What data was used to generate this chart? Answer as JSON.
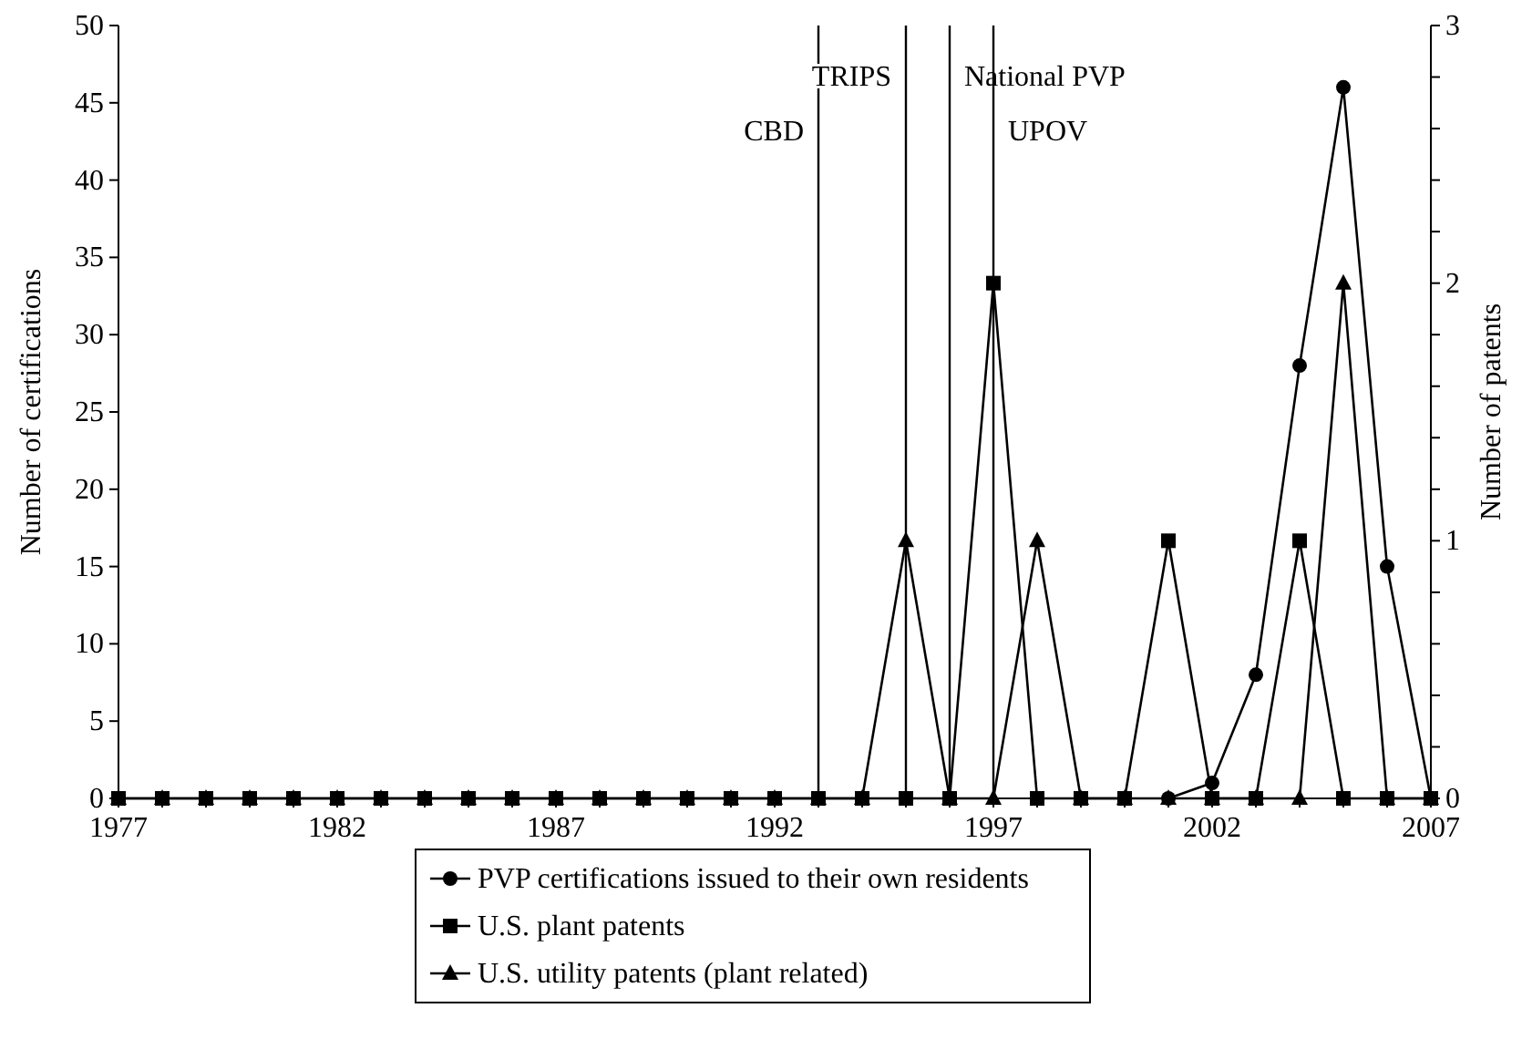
{
  "chart_data": {
    "type": "line",
    "xlabel": null,
    "ylabel": "Number of certifications",
    "y2label": "Number of patents",
    "x": [
      1977,
      1978,
      1979,
      1980,
      1981,
      1982,
      1983,
      1984,
      1985,
      1986,
      1987,
      1988,
      1989,
      1990,
      1991,
      1992,
      1993,
      1994,
      1995,
      1996,
      1997,
      1998,
      1999,
      2000,
      2001,
      2002,
      2003,
      2004,
      2005,
      2006,
      2007
    ],
    "series": [
      {
        "name": "PVP certifications issued to their own residents",
        "color": "#000000",
        "marker": "circle",
        "x": [
          2001,
          2002,
          2003,
          2004,
          2005,
          2006,
          2007
        ],
        "values": [
          0,
          1,
          8,
          28,
          46,
          15,
          0
        ]
      },
      {
        "name": "U.S. plant patents",
        "color": "#000000",
        "marker": "square",
        "axis": "y2",
        "values": [
          0,
          0,
          0,
          0,
          0,
          0,
          0,
          0,
          0,
          0,
          0,
          0,
          0,
          0,
          0,
          0,
          0,
          0,
          0,
          0,
          2,
          0,
          0,
          0,
          1,
          0,
          0,
          1,
          0,
          0,
          0
        ]
      },
      {
        "name": "U.S. utility patents (plant related)",
        "color": "#000000",
        "marker": "triangle",
        "axis": "y2",
        "values": [
          0,
          0,
          0,
          0,
          0,
          0,
          0,
          0,
          0,
          0,
          0,
          0,
          0,
          0,
          0,
          0,
          0,
          0,
          1,
          0,
          0,
          1,
          0,
          0,
          0,
          0,
          0,
          0,
          2,
          0,
          0
        ]
      }
    ],
    "xlim": [
      1977,
      2007
    ],
    "xticks": [
      1977,
      {
        "value": 1978,
        "label": null
      },
      {
        "value": 1979,
        "label": null
      },
      {
        "value": 1980,
        "label": null
      },
      {
        "value": 1981,
        "label": null
      },
      1982,
      {
        "value": 1983,
        "label": null
      },
      {
        "value": 1984,
        "label": null
      },
      {
        "value": 1985,
        "label": null
      },
      {
        "value": 1986,
        "label": null
      },
      1987,
      {
        "value": 1988,
        "label": null
      },
      {
        "value": 1989,
        "label": null
      },
      {
        "value": 1990,
        "label": null
      },
      {
        "value": 1991,
        "label": null
      },
      1992,
      {
        "value": 1993,
        "label": null
      },
      {
        "value": 1994,
        "label": null
      },
      {
        "value": 1995,
        "label": null
      },
      {
        "value": 1996,
        "label": null
      },
      1997,
      {
        "value": 1998,
        "label": null
      },
      {
        "value": 1999,
        "label": null
      },
      {
        "value": 2000,
        "label": null
      },
      {
        "value": 2001,
        "label": null
      },
      2002,
      {
        "value": 2003,
        "label": null
      },
      {
        "value": 2004,
        "label": null
      },
      {
        "value": 2005,
        "label": null
      },
      {
        "value": 2006,
        "label": null
      },
      2007
    ],
    "ylim": [
      0,
      50
    ],
    "yticks": [
      0,
      5,
      10,
      15,
      20,
      25,
      30,
      35,
      40,
      45,
      50
    ],
    "y2lim": [
      0,
      3
    ],
    "y2ticks": [
      0,
      {
        "value": 0.2,
        "label": null
      },
      {
        "value": 0.4,
        "label": null
      },
      {
        "value": 0.6,
        "label": null
      },
      {
        "value": 0.8,
        "label": null
      },
      1,
      {
        "value": 1.2,
        "label": null
      },
      {
        "value": 1.4,
        "label": null
      },
      {
        "value": 1.6,
        "label": null
      },
      {
        "value": 1.8,
        "label": null
      },
      2,
      {
        "value": 2.2,
        "label": null
      },
      {
        "value": 2.4,
        "label": null
      },
      {
        "value": 2.6,
        "label": null
      },
      {
        "value": 2.8,
        "label": null
      },
      3
    ],
    "ref_lines": [
      {
        "axis": "x",
        "value": 1993,
        "label": "CBD"
      },
      {
        "axis": "x",
        "value": 1995,
        "label": "TRIPS"
      },
      {
        "axis": "x",
        "value": 1996,
        "label": "National PVP"
      },
      {
        "axis": "x",
        "value": 1997,
        "label": "UPOV"
      }
    ],
    "grid": false,
    "legend": "bottom",
    "line_style": "solid"
  }
}
